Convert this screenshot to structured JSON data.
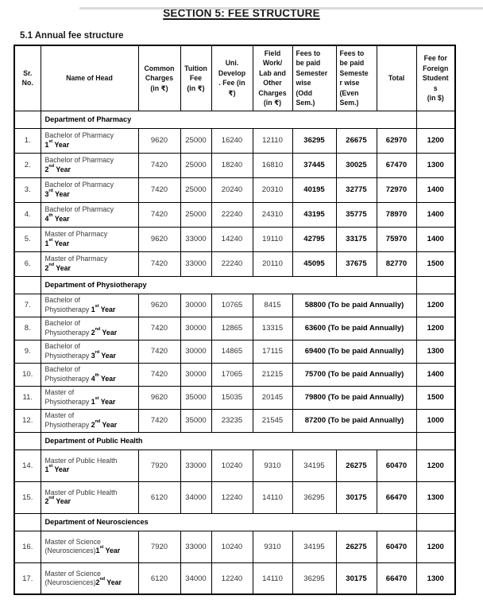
{
  "page": {
    "title": "SECTION 5: FEE STRUCTURE",
    "subtitle": "5.1 Annual fee structure"
  },
  "colors": {
    "border": "#000000",
    "text": "#000000",
    "top_artifact": "#dcdcdc"
  },
  "table": {
    "headers": [
      {
        "label": "Sr.\nNo."
      },
      {
        "label": "Name of Head"
      },
      {
        "label": "Common\nCharges\n(in ₹)"
      },
      {
        "label": "Tuition\nFee\n(in ₹)"
      },
      {
        "label": "Uni.\nDevelop\n. Fee (in\n₹)"
      },
      {
        "label": "Field\nWork/\nLab and\nOther\nCharges\n(in ₹)"
      },
      {
        "label": "Fees to\nbe paid\nSemester\nwise\n(Odd\nSem.)",
        "align": "left"
      },
      {
        "label": "Fees to\nbe paid\nSemeste\nr wise\n(Even\nSem.)",
        "align": "left"
      },
      {
        "label": "Total"
      },
      {
        "label": "Fee for\nForeign\nStudent\ns\n(in $)"
      }
    ],
    "rows": [
      {
        "type": "dept",
        "label": "Department of Pharmacy"
      },
      {
        "type": "course",
        "no": "1.",
        "name": "Bachelor of Pharmacy\n**1^st^ Year**",
        "common": "9620",
        "tuition": "25000",
        "uni": "16240",
        "field": "12110",
        "odd": "36295",
        "even": "26675",
        "total": "62970",
        "foreign": "1200",
        "odd_bold": true
      },
      {
        "type": "course",
        "no": "2.",
        "name": "Bachelor of Pharmacy\n**2^nd^ Year**",
        "common": "7420",
        "tuition": "25000",
        "uni": "18240",
        "field": "16810",
        "odd": "37445",
        "even": "30025",
        "total": "67470",
        "foreign": "1300",
        "odd_bold": true
      },
      {
        "type": "course",
        "no": "3.",
        "name": "Bachelor of Pharmacy\n**3^rd^ Year**",
        "common": "7420",
        "tuition": "25000",
        "uni": "20240",
        "field": "20310",
        "odd": "40195",
        "even": "32775",
        "total": "72970",
        "foreign": "1400",
        "odd_bold": true
      },
      {
        "type": "course",
        "no": "4.",
        "name": "Bachelor of Pharmacy\n**4^th^ Year**",
        "common": "7420",
        "tuition": "25000",
        "uni": "22240",
        "field": "24310",
        "odd": "43195",
        "even": "35775",
        "total": "78970",
        "foreign": "1400",
        "odd_bold": true
      },
      {
        "type": "course",
        "no": "5.",
        "name": "Master of Pharmacy\n**1^st^ Year**",
        "common": "9620",
        "tuition": "33000",
        "uni": "14240",
        "field": "19110",
        "odd": "42795",
        "even": "33175",
        "total": "75970",
        "foreign": "1400",
        "odd_bold": true
      },
      {
        "type": "course",
        "no": "6.",
        "name": "Master of Pharmacy\n**2^nd^ Year**",
        "common": "7420",
        "tuition": "33000",
        "uni": "22240",
        "field": "20110",
        "odd": "45095",
        "even": "37675",
        "total": "82770",
        "foreign": "1500",
        "odd_bold": true
      },
      {
        "type": "dept",
        "label": "Department of Physiotherapy"
      },
      {
        "type": "annual",
        "no": "7.",
        "name": "Bachelor of\nPhysiotherapy **1^st^ Year**",
        "common": "9620",
        "tuition": "30000",
        "uni": "10765",
        "field": "8415",
        "annual": "58800 (To be paid Annually)",
        "foreign": "1200"
      },
      {
        "type": "annual",
        "no": "8.",
        "name": "Bachelor of\nPhysiotherapy **2^nd^ Year**",
        "common": "7420",
        "tuition": "30000",
        "uni": "12865",
        "field": "13315",
        "annual": "63600 (To be paid Annually)",
        "foreign": "1200"
      },
      {
        "type": "annual",
        "no": "9.",
        "name": "Bachelor of\nPhysiotherapy **3^rd^ Year**",
        "common": "7420",
        "tuition": "30000",
        "uni": "14865",
        "field": "17115",
        "annual": "69400 (To be paid Annually)",
        "foreign": "1300"
      },
      {
        "type": "annual",
        "no": "10.",
        "name": "Bachelor of\nPhysiotherapy **4^th^ Year**",
        "common": "7420",
        "tuition": "30000",
        "uni": "17065",
        "field": "21215",
        "annual": "75700 (To be paid Annually)",
        "foreign": "1400"
      },
      {
        "type": "annual",
        "no": "11.",
        "name": "Master of\nPhysiotherapy **1^st^ Year**",
        "common": "9620",
        "tuition": "35000",
        "uni": "15035",
        "field": "20145",
        "annual": "79800 (To be paid Annually)",
        "foreign": "1500"
      },
      {
        "type": "annual",
        "no": "12.",
        "name": "Master of\nPhysiotherapy **2^nd^ Year**",
        "common": "7420",
        "tuition": "35000",
        "uni": "23235",
        "field": "21545",
        "annual": "87200 (To be paid Annually)",
        "foreign": "1000"
      },
      {
        "type": "dept",
        "label": "Department of Public Health"
      },
      {
        "type": "course",
        "no": "14.",
        "name": "Master of Public Health\n**1^st^ Year**",
        "common": "7920",
        "tuition": "33000",
        "uni": "10240",
        "field": "9310",
        "odd": "34195",
        "even": "26275",
        "total": "60470",
        "foreign": "1200",
        "odd_bold": false
      },
      {
        "type": "course",
        "no": "15.",
        "name": "Master of Public Health\n**2^nd^ Year**",
        "common": "6120",
        "tuition": "34000",
        "uni": "12240",
        "field": "14110",
        "odd": "36295",
        "even": "30175",
        "total": "66470",
        "foreign": "1300",
        "odd_bold": false
      },
      {
        "type": "dept",
        "label": "Department of Neurosciences"
      },
      {
        "type": "course",
        "no": "16.",
        "name": "Master of Science\n(Neurosciences)**1^st^ Year**",
        "common": "7920",
        "tuition": "33000",
        "uni": "10240",
        "field": "9310",
        "odd": "34195",
        "even": "26275",
        "total": "60470",
        "foreign": "1200",
        "odd_bold": false
      },
      {
        "type": "course",
        "no": "17.",
        "name": "Master of Science\n(Neurosciences)**2^nd^ Year**",
        "common": "6120",
        "tuition": "34000",
        "uni": "12240",
        "field": "14110",
        "odd": "36295",
        "even": "30175",
        "total": "66470",
        "foreign": "1300",
        "odd_bold": false
      }
    ]
  }
}
